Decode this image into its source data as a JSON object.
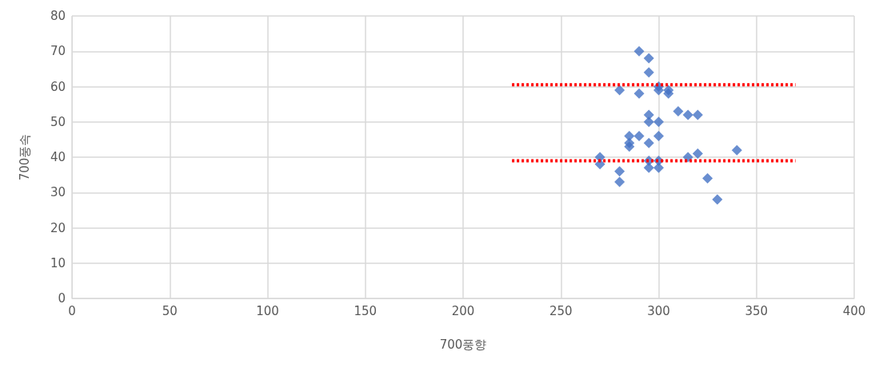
{
  "chart_data": {
    "type": "scatter",
    "xlabel": "700풍향",
    "ylabel": "700풍속",
    "xlim": [
      0,
      400
    ],
    "xticks": [
      0,
      50,
      100,
      150,
      200,
      250,
      300,
      350,
      400
    ],
    "ylim": [
      0,
      80
    ],
    "yticks": [
      0,
      10,
      20,
      30,
      40,
      50,
      60,
      70,
      80
    ],
    "grid": true,
    "marker": "diamond",
    "series": [
      {
        "color": "#4472c4",
        "x": [
          290,
          295,
          295,
          280,
          290,
          300,
          300,
          305,
          305,
          310,
          315,
          320,
          295,
          295,
          300,
          285,
          290,
          300,
          285,
          285,
          295,
          270,
          270,
          280,
          280,
          295,
          295,
          300,
          300,
          315,
          320,
          340,
          325,
          330
        ],
        "values": [
          70,
          68,
          64,
          59,
          58,
          60,
          59,
          59,
          58,
          53,
          52,
          52,
          52,
          50,
          50,
          46,
          46,
          46,
          44,
          43,
          44,
          40,
          38,
          36,
          33,
          39,
          37,
          39,
          37,
          40,
          41,
          42,
          34,
          28
        ]
      },
      {
        "type": "line",
        "color": "#ff0000",
        "line_style": "dotted",
        "marker": "none",
        "x": [
          225,
          370
        ],
        "values": [
          60.5,
          60.5
        ]
      },
      {
        "type": "line",
        "color": "#ff0000",
        "line_style": "dotted",
        "marker": "none",
        "x": [
          225,
          370
        ],
        "values": [
          39,
          39
        ]
      }
    ]
  }
}
